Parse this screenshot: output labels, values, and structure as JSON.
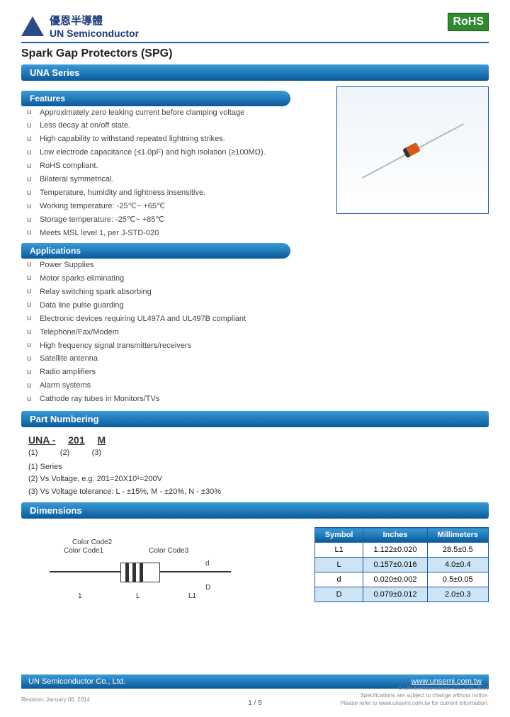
{
  "header": {
    "logo_cn": "優恩半導體",
    "logo_en": "UN Semiconductor",
    "rohs": "RoHS"
  },
  "title": "Spark Gap Protectors (SPG)",
  "series_bar": "UNA Series",
  "features_label": "Features",
  "features": [
    "Approximately zero leaking current before clamping voltage",
    "Less decay at on/off state.",
    "High capability to withstand repeated lightning strikes.",
    "Low electrode capacitance (≤1.0pF) and high isolation (≥100MΩ).",
    "RoHS compliant.",
    "Bilateral symmetrical.",
    "Temperature, humidity and lightness insensitive.",
    "Working temperature: -25℃~ +65℃",
    "Storage temperature: -25℃~ +85℃",
    "Meets MSL level 1, per J-STD-020"
  ],
  "applications_label": "Applications",
  "applications": [
    "Power Supplies",
    "Motor sparks eliminating",
    "Relay switching spark absorbing",
    "Data line pulse guarding",
    "Electronic devices requiring UL497A and UL497B compliant",
    "Telephone/Fax/Modem",
    "High frequency signal transmitters/receivers",
    "Satellite antenna",
    "Radio amplifiers",
    "Alarm systems",
    "Cathode ray tubes in Monitors/TVs"
  ],
  "part_numbering_label": "Part Numbering",
  "part_numbering": {
    "segs": [
      "UNA -",
      "201",
      "M"
    ],
    "refs": [
      "(1)",
      "(2)",
      "(3)"
    ],
    "notes": [
      "(1)  Series",
      "(2)  Vs Voltage, e.g. 201=20X10¹=200V",
      "(3)  Vs Voltage tolerance: L - ±15%, M - ±20%, N - ±30%"
    ]
  },
  "dimensions_label": "Dimensions",
  "diagram_labels": {
    "cc1": "Color Code1",
    "cc2": "Color Code2",
    "cc3": "Color Code3",
    "l1": "L1",
    "l": "L",
    "one": "1",
    "d": "d",
    "D": "D"
  },
  "dim_table": {
    "headers": [
      "Symbol",
      "Inches",
      "Millimeters"
    ],
    "rows": [
      {
        "sym": "L1",
        "in": "1.122±0.020",
        "mm": "28.5±0.5",
        "alt": false
      },
      {
        "sym": "L",
        "in": "0.157±0.016",
        "mm": "4.0±0.4",
        "alt": true
      },
      {
        "sym": "d",
        "in": "0.020±0.002",
        "mm": "0.5±0.05",
        "alt": false
      },
      {
        "sym": "D",
        "in": "0.079±0.012",
        "mm": "2.0±0.3",
        "alt": true
      }
    ]
  },
  "footer": {
    "company": "UN Semiconductor Co., Ltd.",
    "url": "www.unsemi.com.tw",
    "fine1": "© UN Semiconductor Co., Ltd. 2014",
    "fine2": "Specifications are subject to change without notice.",
    "fine3": "Please refer to www.unsemi.com.tw for current information.",
    "rev": "Revision: January 06, 2014",
    "page": "1 / 5"
  }
}
